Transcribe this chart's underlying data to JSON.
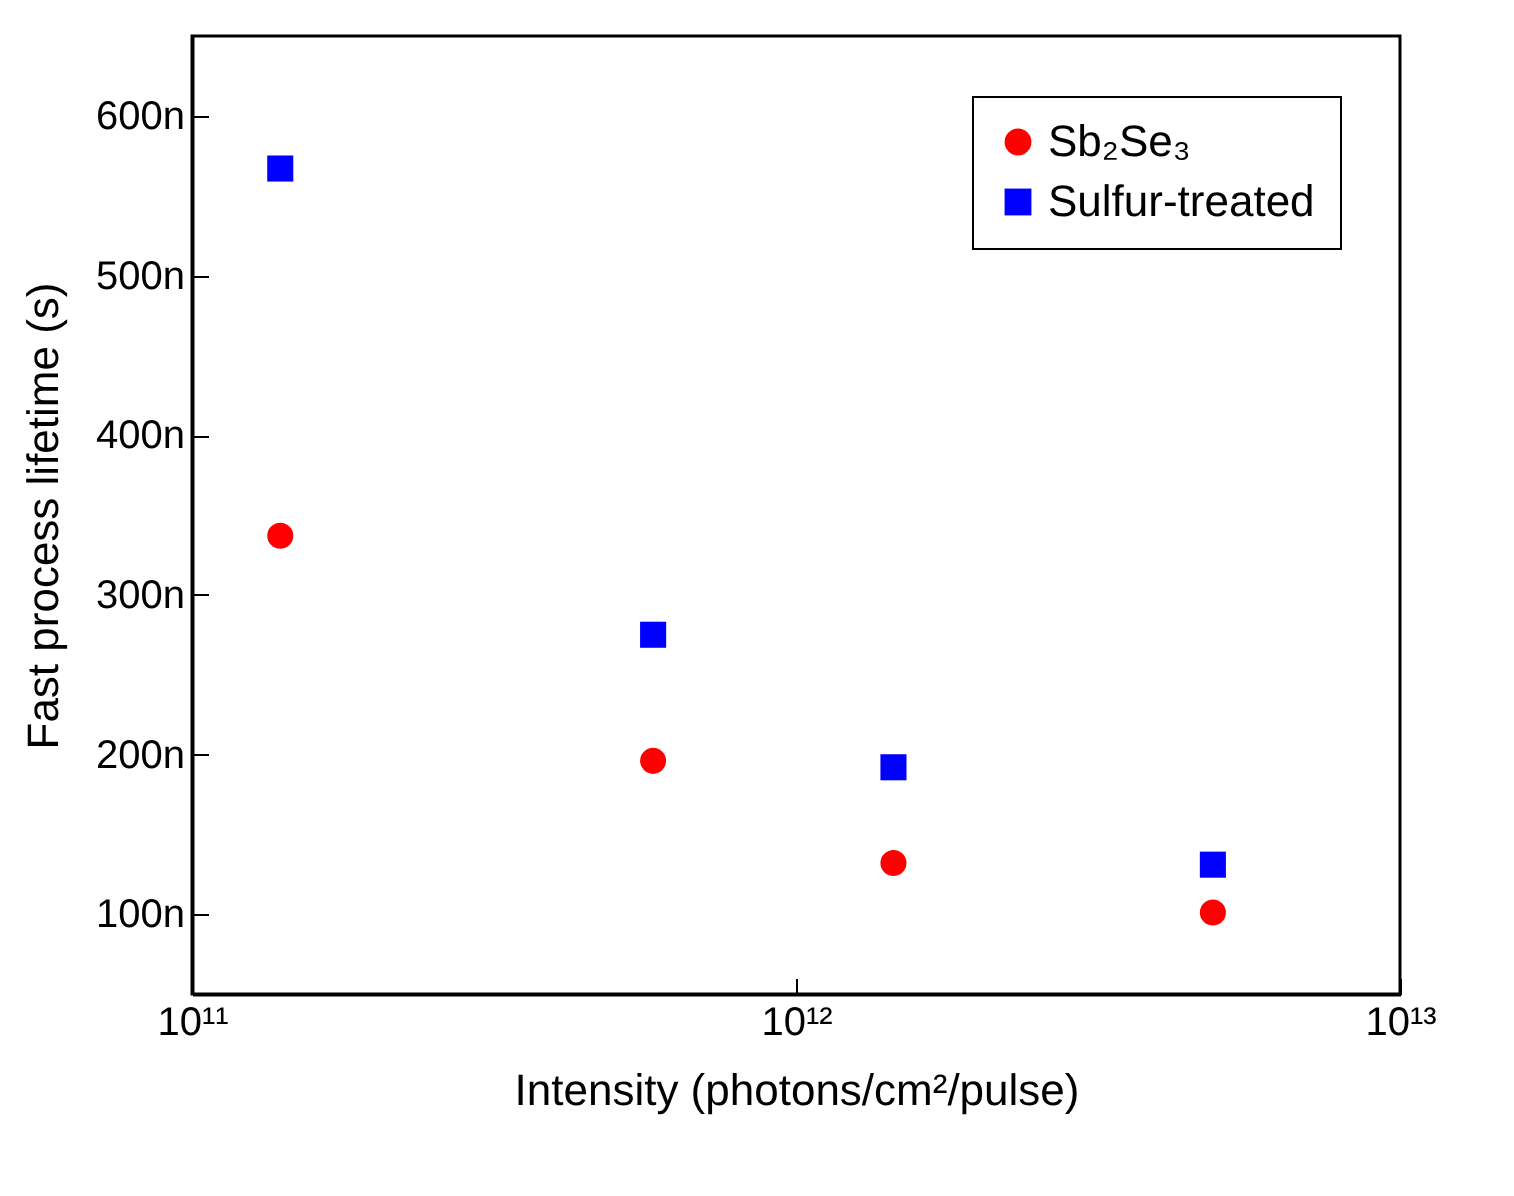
{
  "chart_data": {
    "type": "scatter",
    "xlabel": "Intensity (photons/cm²/pulse)",
    "ylabel": "Fast process lifetime (s)",
    "log": "x",
    "grid": false,
    "legend": "top right",
    "xlim": [
      100000000000.0,
      10000000000000.0
    ],
    "xticks": [
      {
        "value": 100000000000.0,
        "label": "10¹¹"
      },
      {
        "value": 1000000000000.0,
        "label": "10¹²"
      },
      {
        "value": 10000000000000.0,
        "label": "10¹³"
      }
    ],
    "ylim": [
      50,
      650
    ],
    "yticks": [
      {
        "value": 100,
        "label": "100n"
      },
      {
        "value": 200,
        "label": "200n"
      },
      {
        "value": 300,
        "label": "300n"
      },
      {
        "value": 400,
        "label": "400n"
      },
      {
        "value": 500,
        "label": "500n"
      },
      {
        "value": 600,
        "label": "600n"
      }
    ],
    "x": [
      140000000000.0,
      580000000000.0,
      1450000000000.0,
      4900000000000.0
    ],
    "series": [
      {
        "name": "Sb₂Se₃",
        "color": "#ff0000",
        "marker": "circle",
        "values": [
          337,
          196,
          132,
          101
        ]
      },
      {
        "name": "Sulfur-treated",
        "color": "#0000ff",
        "marker": "square",
        "values": [
          567,
          275,
          192,
          131
        ]
      }
    ]
  }
}
